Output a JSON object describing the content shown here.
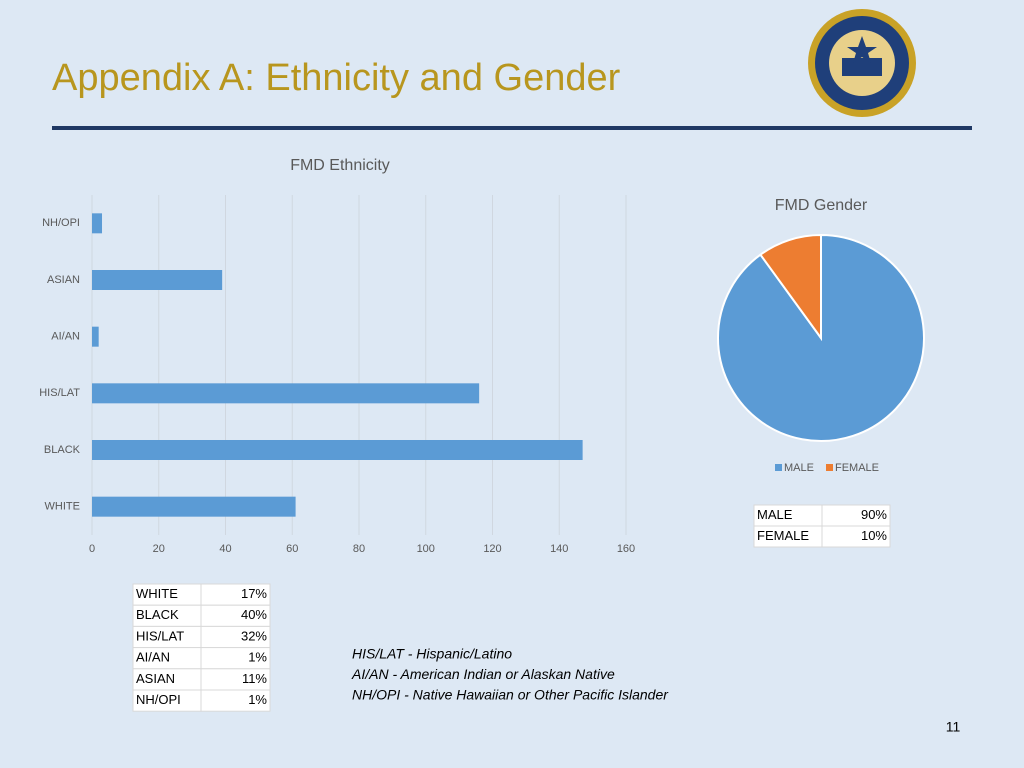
{
  "title": "Appendix A: Ethnicity and Gender",
  "chart_data": [
    {
      "type": "hbar",
      "title": "FMD Ethnicity",
      "categories": [
        "NH/OPI",
        "ASIAN",
        "AI/AN",
        "HIS/LAT",
        "BLACK",
        "WHITE"
      ],
      "values": [
        3,
        39,
        2,
        116,
        147,
        61
      ],
      "color": "#5b9bd5",
      "xlim": [
        0,
        160
      ],
      "xticks": [
        0,
        20,
        40,
        60,
        80,
        100,
        120,
        140,
        160
      ],
      "grid": true
    },
    {
      "type": "pie",
      "title": "FMD Gender",
      "categories": [
        "MALE",
        "FEMALE"
      ],
      "values": [
        90,
        10
      ],
      "colors": [
        "#5b9bd5",
        "#ed7d31"
      ],
      "legend": "bottom"
    }
  ],
  "gender_table": [
    [
      "MALE",
      "90%"
    ],
    [
      "FEMALE",
      "10%"
    ]
  ],
  "ethnicity_table": [
    [
      "WHITE",
      "17%"
    ],
    [
      "BLACK",
      "40%"
    ],
    [
      "HIS/LAT",
      "32%"
    ],
    [
      "AI/AN",
      "1%"
    ],
    [
      "ASIAN",
      "11%"
    ],
    [
      "NH/OPI",
      "1%"
    ]
  ],
  "notes": [
    "HIS/LAT - Hispanic/Latino",
    "AI/AN - American Indian or Alaskan Native",
    "NH/OPI - Native Hawaiian or Other Pacific Islander"
  ],
  "page_number": "11"
}
